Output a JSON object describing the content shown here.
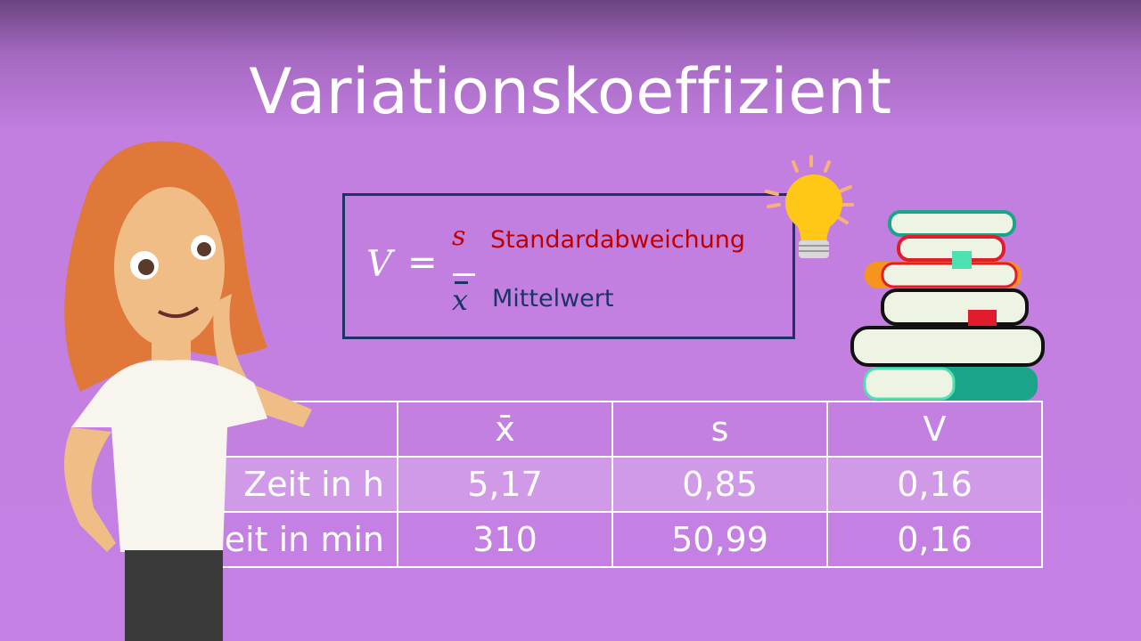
{
  "title": "Variationskoeffizient",
  "formula": {
    "lhs": "V",
    "equals": "=",
    "numerator": "s",
    "denominator": "x",
    "numerator_label": "Standardabweichung",
    "denominator_label": "Mittelwert"
  },
  "table": {
    "headers": [
      "",
      "x̄",
      "s",
      "V"
    ],
    "rows": [
      {
        "label": "Zeit in h",
        "cells": [
          "5,17",
          "0,85",
          "0,16"
        ]
      },
      {
        "label": "Zeit in min",
        "cells": [
          "310",
          "50,99",
          "0,16"
        ]
      }
    ]
  },
  "colors": {
    "accent_red": "#c00000",
    "accent_navy": "#1c3366",
    "background": "#c480e2"
  },
  "icons": [
    "lightbulb-icon",
    "book-stack-icon",
    "teacher-character"
  ]
}
